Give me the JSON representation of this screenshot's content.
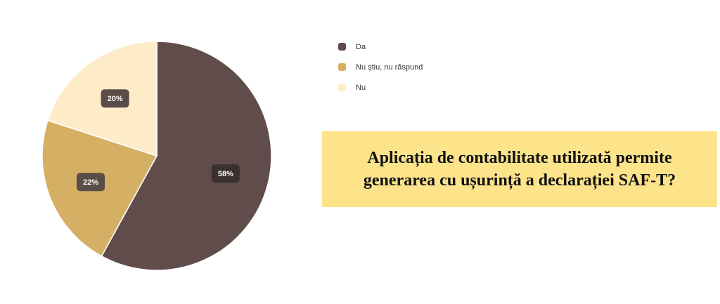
{
  "chart_data": {
    "type": "pie",
    "categories": [
      "Da",
      "Nu știu, nu răspund",
      "Nu"
    ],
    "values": [
      58,
      22,
      20
    ],
    "labels": [
      "58%",
      "22%",
      "20%"
    ],
    "colors": [
      "#614c4c",
      "#d5af64",
      "#feebc8"
    ],
    "legend_position": "right"
  },
  "question": {
    "text": "Aplicația de contabilitate utilizată permite generarea cu ușurință a declarației SAF-T?",
    "background": "#fde38a"
  }
}
